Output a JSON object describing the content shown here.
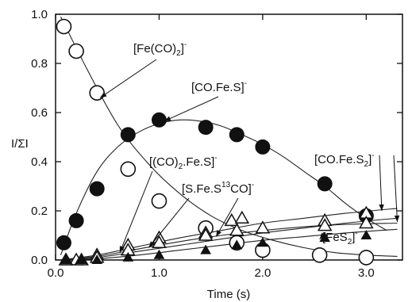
{
  "chart_data": {
    "type": "scatter",
    "xlabel": "Time (s)",
    "ylabel": "I/ΣI",
    "xlim": [
      0,
      3.35
    ],
    "ylim": [
      0,
      1.0
    ],
    "x_ticks": [
      "0.0",
      "1.0",
      "2.0",
      "3.0"
    ],
    "x_tick_values": [
      0,
      1,
      2,
      3
    ],
    "y_ticks": [
      "0.0",
      "0.2",
      "0.4",
      "0.6",
      "0.8",
      "1.0"
    ],
    "y_tick_values": [
      0,
      0.2,
      0.4,
      0.6,
      0.8,
      1.0
    ],
    "grid": false,
    "series": [
      {
        "marker": "open-circle",
        "label": "[Fe(CO)2]-",
        "points": [
          [
            0.08,
            0.95
          ],
          [
            0.2,
            0.85
          ],
          [
            0.4,
            0.68
          ],
          [
            0.7,
            0.37
          ],
          [
            1.0,
            0.24
          ],
          [
            1.45,
            0.13
          ],
          [
            1.75,
            0.07
          ],
          [
            2.0,
            0.04
          ],
          [
            2.55,
            0.02
          ],
          [
            3.0,
            0.01
          ]
        ],
        "fit": [
          [
            0.05,
            0.99
          ],
          [
            0.3,
            0.78
          ],
          [
            0.6,
            0.55
          ],
          [
            0.9,
            0.39
          ],
          [
            1.2,
            0.27
          ],
          [
            1.5,
            0.18
          ],
          [
            1.8,
            0.12
          ],
          [
            2.1,
            0.08
          ],
          [
            2.4,
            0.05
          ],
          [
            2.7,
            0.03
          ],
          [
            3.0,
            0.02
          ],
          [
            3.3,
            0.015
          ]
        ]
      },
      {
        "marker": "filled-circle",
        "label": "[CO.Fe.S]-",
        "points": [
          [
            0.08,
            0.07
          ],
          [
            0.2,
            0.16
          ],
          [
            0.4,
            0.29
          ],
          [
            0.7,
            0.51
          ],
          [
            1.0,
            0.57
          ],
          [
            1.45,
            0.54
          ],
          [
            1.75,
            0.51
          ],
          [
            2.0,
            0.46
          ],
          [
            2.6,
            0.31
          ],
          [
            3.0,
            0.18
          ]
        ],
        "fit": [
          [
            0.05,
            0.02
          ],
          [
            0.2,
            0.19
          ],
          [
            0.4,
            0.36
          ],
          [
            0.6,
            0.46
          ],
          [
            0.8,
            0.52
          ],
          [
            1.0,
            0.555
          ],
          [
            1.2,
            0.57
          ],
          [
            1.4,
            0.565
          ],
          [
            1.6,
            0.545
          ],
          [
            1.8,
            0.51
          ],
          [
            2.0,
            0.47
          ],
          [
            2.2,
            0.42
          ],
          [
            2.4,
            0.36
          ],
          [
            2.6,
            0.3
          ],
          [
            2.8,
            0.23
          ],
          [
            3.0,
            0.17
          ],
          [
            3.2,
            0.12
          ]
        ]
      },
      {
        "marker": "open-triangle",
        "label": "[CO.Fe.S2]-",
        "points": [
          [
            0.1,
            0.0
          ],
          [
            0.2,
            0.0
          ],
          [
            0.4,
            0.02
          ],
          [
            0.7,
            0.06
          ],
          [
            1.0,
            0.09
          ],
          [
            1.45,
            0.11
          ],
          [
            1.7,
            0.16
          ],
          [
            1.8,
            0.17
          ],
          [
            2.6,
            0.16
          ],
          [
            3.0,
            0.19
          ]
        ],
        "fit": [
          [
            0.05,
            0.0
          ],
          [
            0.4,
            0.02
          ],
          [
            0.8,
            0.055
          ],
          [
            1.2,
            0.09
          ],
          [
            1.6,
            0.12
          ],
          [
            2.0,
            0.15
          ],
          [
            2.4,
            0.17
          ],
          [
            2.8,
            0.19
          ],
          [
            3.3,
            0.21
          ]
        ]
      },
      {
        "marker": "open-triangle",
        "label": "[S.Fe.S13CO]-",
        "points": [
          [
            0.1,
            0.0
          ],
          [
            0.25,
            0.0
          ],
          [
            0.4,
            0.01
          ],
          [
            0.7,
            0.04
          ],
          [
            1.0,
            0.07
          ],
          [
            1.45,
            0.1
          ],
          [
            1.75,
            0.12
          ],
          [
            2.0,
            0.13
          ],
          [
            2.6,
            0.14
          ],
          [
            3.0,
            0.15
          ]
        ],
        "fit": [
          [
            0.05,
            0.0
          ],
          [
            0.4,
            0.015
          ],
          [
            0.8,
            0.045
          ],
          [
            1.2,
            0.075
          ],
          [
            1.6,
            0.1
          ],
          [
            2.0,
            0.12
          ],
          [
            2.4,
            0.135
          ],
          [
            2.8,
            0.145
          ],
          [
            3.3,
            0.15
          ]
        ]
      },
      {
        "marker": "filled-triangle",
        "label": "[FeS2]-",
        "points": [
          [
            0.1,
            0.0
          ],
          [
            0.25,
            0.0
          ],
          [
            0.4,
            0.0
          ],
          [
            0.7,
            0.01
          ],
          [
            1.0,
            0.02
          ],
          [
            1.45,
            0.04
          ],
          [
            1.75,
            0.06
          ],
          [
            2.0,
            0.07
          ],
          [
            2.6,
            0.09
          ],
          [
            3.0,
            0.1
          ]
        ],
        "fit": [
          [
            0.05,
            0.0
          ],
          [
            0.4,
            0.005
          ],
          [
            0.8,
            0.02
          ],
          [
            1.2,
            0.04
          ],
          [
            1.6,
            0.06
          ],
          [
            2.0,
            0.08
          ],
          [
            2.4,
            0.095
          ],
          [
            2.8,
            0.11
          ],
          [
            3.3,
            0.125
          ]
        ]
      },
      {
        "marker": "none",
        "label": "[(CO)2.Fe.S]-",
        "points": [],
        "fit": [
          [
            0.05,
            0.0
          ],
          [
            0.4,
            0.01
          ],
          [
            0.8,
            0.035
          ],
          [
            1.2,
            0.06
          ],
          [
            1.6,
            0.085
          ],
          [
            2.0,
            0.11
          ],
          [
            2.4,
            0.13
          ],
          [
            2.8,
            0.15
          ],
          [
            3.3,
            0.17
          ]
        ]
      }
    ],
    "annotations": [
      {
        "main": "[Fe(CO)",
        "sub": "2",
        "tail": "]",
        "sup": "-"
      },
      {
        "main": "[CO.Fe.S]",
        "sub": "",
        "tail": "",
        "sup": "-"
      },
      {
        "main": "[(CO)",
        "sub": "2",
        "tail": ".Fe.S]",
        "sup": "-"
      },
      {
        "main": "[S.Fe.S",
        "sup13": "13",
        "main2": "CO]",
        "sup": "-"
      },
      {
        "main": "[CO.Fe.S",
        "sub": "2",
        "tail": "]",
        "sup": "-"
      },
      {
        "main": "[FeS",
        "sub": "2",
        "tail": "]",
        "sup": "-"
      }
    ]
  }
}
